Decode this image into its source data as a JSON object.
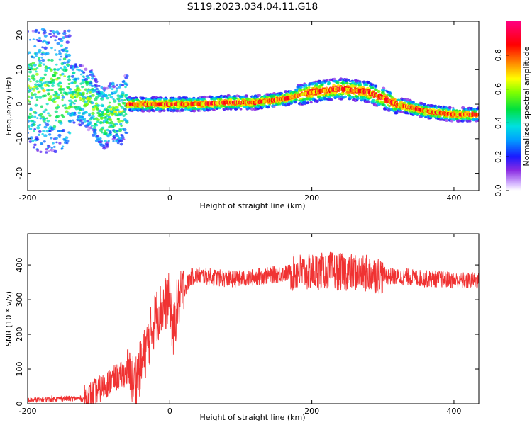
{
  "title": "S119.2023.034.04.11.G18",
  "chart_data": [
    {
      "type": "heatmap",
      "xlabel": "Height of straight line (km)",
      "ylabel": "Frequency (Hz)",
      "xlim": [
        -200,
        435
      ],
      "ylim": [
        -25,
        24
      ],
      "xticks": [
        -200,
        0,
        200,
        400
      ],
      "yticks": [
        -20,
        -10,
        0,
        10,
        20
      ],
      "colorbar": {
        "label": "Normalized spectral amplitude",
        "range": [
          0,
          1
        ],
        "ticks": [
          0.0,
          0.2,
          0.4,
          0.6,
          0.8
        ]
      },
      "ridge": {
        "x": [
          -200,
          -160,
          -130,
          -110,
          -100,
          -90,
          -80,
          -70,
          -60,
          -40,
          0,
          40,
          80,
          120,
          160,
          200,
          240,
          280,
          320,
          360,
          400,
          435
        ],
        "y": [
          4,
          4,
          3,
          1,
          -3,
          -4,
          -2,
          -3,
          0,
          0,
          0,
          0,
          0.5,
          0.5,
          1.5,
          3.5,
          4.5,
          3.5,
          0,
          -2,
          -3,
          -3
        ]
      }
    },
    {
      "type": "line",
      "xlabel": "Height of straight line (km)",
      "ylabel": "SNR (10 * v/v)",
      "xlim": [
        -200,
        435
      ],
      "ylim": [
        0,
        490
      ],
      "xticks": [
        -200,
        0,
        200,
        400
      ],
      "yticks": [
        0,
        100,
        200,
        300,
        400
      ],
      "color": "#f03232",
      "series": [
        {
          "name": "",
          "x": [
            -200,
            -150,
            -120,
            -100,
            -80,
            -60,
            -50,
            -40,
            -30,
            -20,
            -10,
            0,
            5,
            10,
            15,
            20,
            30,
            40,
            60,
            80,
            100,
            120,
            140,
            160,
            180,
            200,
            220,
            240,
            260,
            280,
            300,
            320,
            340,
            360,
            380,
            400,
            420,
            435
          ],
          "y": [
            10,
            15,
            15,
            40,
            70,
            90,
            60,
            110,
            180,
            250,
            280,
            300,
            200,
            280,
            300,
            330,
            365,
            370,
            365,
            360,
            360,
            365,
            370,
            375,
            380,
            380,
            385,
            380,
            380,
            375,
            370,
            365,
            365,
            360,
            360,
            355,
            355,
            355
          ]
        }
      ]
    }
  ]
}
